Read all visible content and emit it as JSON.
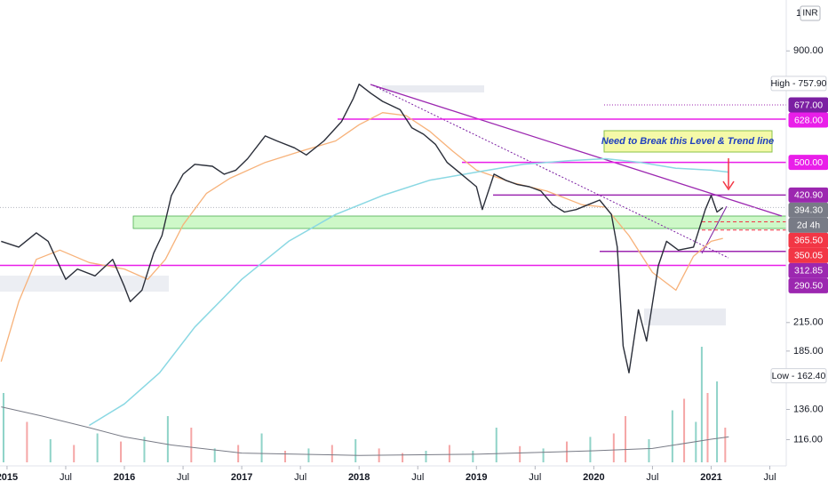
{
  "chart_data": {
    "type": "line",
    "yscale": "log",
    "ylim": [
      101,
      1177
    ],
    "xlim": [
      2014.94,
      2021.64
    ],
    "grid": false,
    "axis_unit": "INR",
    "scale_mode": "1",
    "countdown": "2d 4h",
    "annotation": "Need to Break this Level & Trend line",
    "yticks": [
      {
        "value": 900,
        "label": "900.00"
      },
      {
        "value": 215,
        "label": "215.00"
      },
      {
        "value": 185,
        "label": "185.00"
      },
      {
        "value": 136,
        "label": "136.00"
      },
      {
        "value": 116,
        "label": "116.00"
      }
    ],
    "xticks": [
      {
        "value": 2015,
        "label": "2015"
      },
      {
        "value": 2015.5,
        "label": "Jul"
      },
      {
        "value": 2016,
        "label": "2016"
      },
      {
        "value": 2016.5,
        "label": "Jul"
      },
      {
        "value": 2017,
        "label": "2017"
      },
      {
        "value": 2017.5,
        "label": "Jul"
      },
      {
        "value": 2018,
        "label": "2018"
      },
      {
        "value": 2018.5,
        "label": "Jul"
      },
      {
        "value": 2019,
        "label": "2019"
      },
      {
        "value": 2019.5,
        "label": "Jul"
      },
      {
        "value": 2020,
        "label": "2020"
      },
      {
        "value": 2020.5,
        "label": "Jul"
      },
      {
        "value": 2021,
        "label": "2021"
      },
      {
        "value": 2021.5,
        "label": "Jul"
      }
    ],
    "series": [
      {
        "color": "#2a2e39",
        "width": 1.4,
        "x": [
          2014.95,
          2015.1,
          2015.25,
          2015.35,
          2015.5,
          2015.6,
          2015.75,
          2015.9,
          2016.0,
          2016.05,
          2016.15,
          2016.25,
          2016.32,
          2016.4,
          2016.5,
          2016.6,
          2016.75,
          2016.85,
          2016.95,
          2017.05,
          2017.2,
          2017.3,
          2017.45,
          2017.55,
          2017.7,
          2017.85,
          2017.95,
          2018.0,
          2018.1,
          2018.2,
          2018.35,
          2018.45,
          2018.55,
          2018.65,
          2018.75,
          2018.85,
          2019.0,
          2019.05,
          2019.15,
          2019.25,
          2019.35,
          2019.45,
          2019.55,
          2019.65,
          2019.75,
          2019.85,
          2019.95,
          2020.05,
          2020.15,
          2020.2,
          2020.25,
          2020.3,
          2020.38,
          2020.45,
          2020.55,
          2020.62,
          2020.72,
          2020.85,
          2020.95,
          2021.0,
          2021.05,
          2021.1
        ],
        "values": [
          330,
          320,
          345,
          330,
          270,
          285,
          275,
          300,
          260,
          240,
          255,
          310,
          340,
          420,
          470,
          495,
          490,
          470,
          480,
          510,
          575,
          560,
          540,
          520,
          560,
          620,
          700,
          755,
          720,
          690,
          660,
          600,
          580,
          550,
          500,
          475,
          440,
          390,
          470,
          455,
          445,
          440,
          430,
          400,
          385,
          390,
          400,
          410,
          380,
          320,
          190,
          165,
          230,
          195,
          290,
          330,
          315,
          320,
          390,
          420,
          385,
          394.3
        ]
      },
      {
        "color": "#f7b27a",
        "width": 1.3,
        "x": [
          2014.95,
          2015.1,
          2015.25,
          2015.45,
          2015.7,
          2016.0,
          2016.2,
          2016.35,
          2016.5,
          2016.7,
          2016.9,
          2017.2,
          2017.5,
          2017.8,
          2018.0,
          2018.2,
          2018.4,
          2018.6,
          2018.8,
          2019.0,
          2019.3,
          2019.6,
          2019.9,
          2020.1,
          2020.3,
          2020.5,
          2020.7,
          2020.85,
          2021.0,
          2021.1
        ],
        "values": [
          175,
          240,
          300,
          315,
          295,
          285,
          270,
          300,
          360,
          425,
          460,
          500,
          530,
          560,
          610,
          650,
          640,
          590,
          530,
          480,
          450,
          430,
          400,
          395,
          340,
          280,
          255,
          305,
          330,
          335
        ]
      },
      {
        "color": "#8ad8e3",
        "width": 1.5,
        "x": [
          2015.7,
          2016.0,
          2016.3,
          2016.6,
          2017.0,
          2017.4,
          2017.8,
          2018.2,
          2018.6,
          2019.0,
          2019.4,
          2019.8,
          2020.1,
          2020.4,
          2020.7,
          2021.0,
          2021.15
        ],
        "values": [
          125,
          140,
          165,
          210,
          270,
          330,
          380,
          420,
          455,
          475,
          495,
          505,
          510,
          500,
          485,
          480,
          475
        ]
      }
    ],
    "volume": {
      "vlim": [
        0,
        100
      ],
      "x": [
        2014.97,
        2015.17,
        2015.37,
        2015.57,
        2015.77,
        2015.97,
        2016.17,
        2016.37,
        2016.57,
        2016.77,
        2016.97,
        2017.17,
        2017.37,
        2017.57,
        2017.77,
        2017.97,
        2018.17,
        2018.37,
        2018.57,
        2018.77,
        2018.97,
        2019.17,
        2019.37,
        2019.57,
        2019.77,
        2019.97,
        2020.17,
        2020.27,
        2020.47,
        2020.67,
        2020.77,
        2020.87,
        2020.92,
        2020.97,
        2021.05,
        2021.12
      ],
      "values": [
        60,
        35,
        20,
        15,
        25,
        18,
        22,
        40,
        30,
        12,
        15,
        25,
        10,
        12,
        15,
        20,
        12,
        8,
        10,
        15,
        10,
        30,
        14,
        12,
        18,
        22,
        25,
        40,
        20,
        45,
        55,
        35,
        100,
        60,
        70,
        30
      ],
      "up": [
        true,
        false,
        true,
        false,
        true,
        false,
        true,
        true,
        false,
        true,
        false,
        true,
        false,
        true,
        false,
        true,
        false,
        false,
        true,
        false,
        true,
        true,
        false,
        true,
        false,
        true,
        false,
        false,
        true,
        true,
        false,
        true,
        true,
        false,
        true,
        false
      ],
      "ma_x": [
        2014.95,
        2015.3,
        2015.7,
        2016.0,
        2016.4,
        2017.0,
        2018.0,
        2019.0,
        2020.0,
        2020.5,
        2021.0,
        2021.15
      ],
      "ma": [
        48,
        40,
        30,
        22,
        15,
        8,
        6,
        7,
        10,
        12,
        20,
        22
      ]
    },
    "levels": [
      {
        "value": 757.9,
        "label": "High - 757.90",
        "bg": "#ffffff",
        "fg": "#131722",
        "line": "none"
      },
      {
        "value": 677,
        "label": "677.00",
        "bg": "#7b1fa2",
        "fg": "#ffffff",
        "line": "dotted",
        "color": "#9c27b0"
      },
      {
        "value": 628,
        "label": "628.00",
        "bg": "#e91ee9",
        "fg": "#ffffff",
        "line": "solid",
        "color": "#e91ee9"
      },
      {
        "value": 500,
        "label": "500.00",
        "bg": "#e91ee9",
        "fg": "#ffffff",
        "line": "solid",
        "color": "#e91ee9"
      },
      {
        "value": 420.9,
        "label": "420.90",
        "bg": "#9c27b0",
        "fg": "#ffffff",
        "line": "solid",
        "color": "#9c27b0"
      },
      {
        "value": 394.3,
        "label": "394.30",
        "bg": "#787b86",
        "fg": "#ffffff",
        "line": "dotted",
        "color": "#b2b5be"
      },
      {
        "value": 365.5,
        "label": "365.50",
        "bg": "#f23645",
        "fg": "#ffffff",
        "line": "dashed",
        "color": "#f23645"
      },
      {
        "value": 350.05,
        "label": "350.05",
        "bg": "#f23645",
        "fg": "#ffffff",
        "line": "dashed",
        "color": "#f23645"
      },
      {
        "value": 312.85,
        "label": "312.85",
        "bg": "#9c27b0",
        "fg": "#ffffff",
        "line": "solid",
        "color": "#9c27b0"
      },
      {
        "value": 290.5,
        "label": "290.50",
        "bg": "#9c27b0",
        "fg": "#ffffff",
        "line": "solid",
        "color": "#e91ee9"
      },
      {
        "value": 162.4,
        "label": "Low - 162.40",
        "bg": "#ffffff",
        "fg": "#131722",
        "line": "none"
      }
    ]
  }
}
